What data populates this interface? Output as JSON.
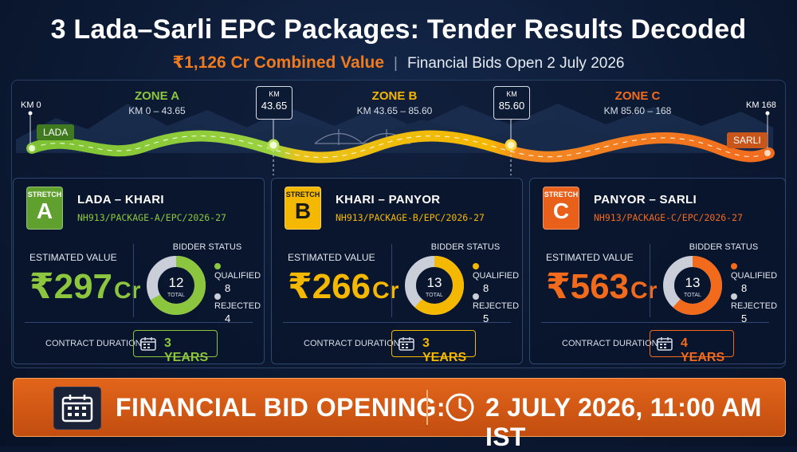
{
  "header": {
    "title": "3 Lada–Sarli EPC Packages: Tender Results Decoded",
    "combined_value": "₹1,126 Cr Combined Value",
    "separator": "|",
    "bids_open": "Financial Bids Open 2 July 2026"
  },
  "map": {
    "start_km": "KM 0",
    "end_km": "KM 168",
    "start_town": "LADA",
    "end_town": "SARLI",
    "markers": [
      {
        "label": "KM",
        "value": "43.65"
      },
      {
        "label": "KM",
        "value": "85.60"
      }
    ],
    "zones": [
      {
        "name": "ZONE A",
        "range": "KM 0 – 43.65",
        "color": "#8cc63f"
      },
      {
        "name": "ZONE B",
        "range": "KM 43.65 – 85.60",
        "color": "#f5b800"
      },
      {
        "name": "ZONE C",
        "range": "KM 85.60 – 168",
        "color": "#f26b1d"
      }
    ]
  },
  "stretches": [
    {
      "badge_label": "STRETCH",
      "letter": "A",
      "name": "LADA – KHARI",
      "code": "NH913/PACKAGE-A/EPC/2026-27",
      "est_label": "ESTIMATED VALUE",
      "value_num": "₹297",
      "value_unit": "Cr",
      "bidder_label": "BIDDER STATUS",
      "total": "12",
      "total_label": "TOTAL",
      "qualified_label": "QUALIFIED",
      "qualified": "8",
      "rejected_label": "REJECTED",
      "rejected": "4",
      "duration_label": "CONTRACT DURATION",
      "duration": "3 YEARS",
      "color": "#8cc63f",
      "badge_color": "#5fa02e"
    },
    {
      "badge_label": "STRETCH",
      "letter": "B",
      "name": "KHARI – PANYOR",
      "code": "NH913/PACKAGE-B/EPC/2026-27",
      "est_label": "ESTIMATED VALUE",
      "value_num": "₹266",
      "value_unit": "Cr",
      "bidder_label": "BIDDER STATUS",
      "total": "13",
      "total_label": "TOTAL",
      "qualified_label": "QUALIFIED",
      "qualified": "8",
      "rejected_label": "REJECTED",
      "rejected": "5",
      "duration_label": "CONTRACT DURATION",
      "duration": "3 YEARS",
      "color": "#f5b800",
      "badge_color": "#f5b800"
    },
    {
      "badge_label": "STRETCH",
      "letter": "C",
      "name": "PANYOR – SARLI",
      "code": "NH913/PACKAGE-C/EPC/2026-27",
      "est_label": "ESTIMATED VALUE",
      "value_num": "₹563",
      "value_unit": "Cr",
      "bidder_label": "BIDDER STATUS",
      "total": "13",
      "total_label": "TOTAL",
      "qualified_label": "QUALIFIED",
      "qualified": "8",
      "rejected_label": "REJECTED",
      "rejected": "5",
      "duration_label": "CONTRACT DURATION",
      "duration": "4 YEARS",
      "color": "#f26b1d",
      "badge_color": "#e8601a"
    }
  ],
  "banner": {
    "label": "FINANCIAL BID OPENING:",
    "datetime": "2 JULY 2026, 11:00 AM IST",
    "calendar_icon": "calendar-icon",
    "clock_icon": "clock-icon"
  },
  "colors": {
    "background": "#0b1730",
    "rejected": "#c9ced8",
    "banner": "#d85a15"
  }
}
